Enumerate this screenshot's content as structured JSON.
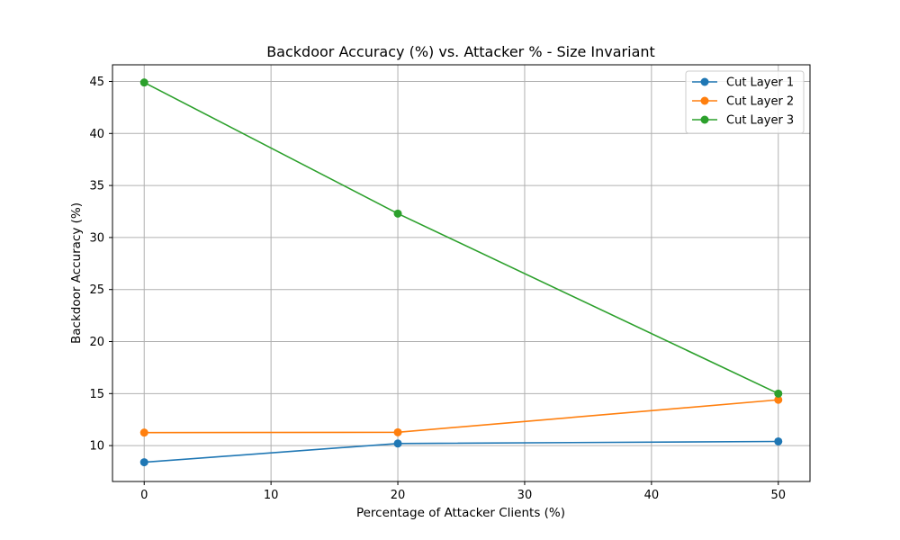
{
  "chart_data": {
    "type": "line",
    "title": "Backdoor Accuracy (%) vs. Attacker % - Size Invariant",
    "xlabel": "Percentage of Attacker Clients (%)",
    "ylabel": "Backdoor Accuracy (%)",
    "x": [
      0,
      20,
      50
    ],
    "xlim": [
      -2.5,
      52.5
    ],
    "ylim": [
      6.55,
      46.6
    ],
    "xticks": [
      0,
      10,
      20,
      30,
      40,
      50
    ],
    "yticks": [
      10,
      15,
      20,
      25,
      30,
      35,
      40,
      45
    ],
    "grid": true,
    "legend_position": "top-right",
    "series": [
      {
        "name": "Cut Layer 1",
        "color": "#1f77b4",
        "values": [
          8.4,
          10.2,
          10.4
        ]
      },
      {
        "name": "Cut Layer 2",
        "color": "#ff7f0e",
        "values": [
          11.25,
          11.28,
          14.4
        ]
      },
      {
        "name": "Cut Layer 3",
        "color": "#2ca02c",
        "values": [
          44.9,
          32.3,
          15.0
        ]
      }
    ]
  }
}
